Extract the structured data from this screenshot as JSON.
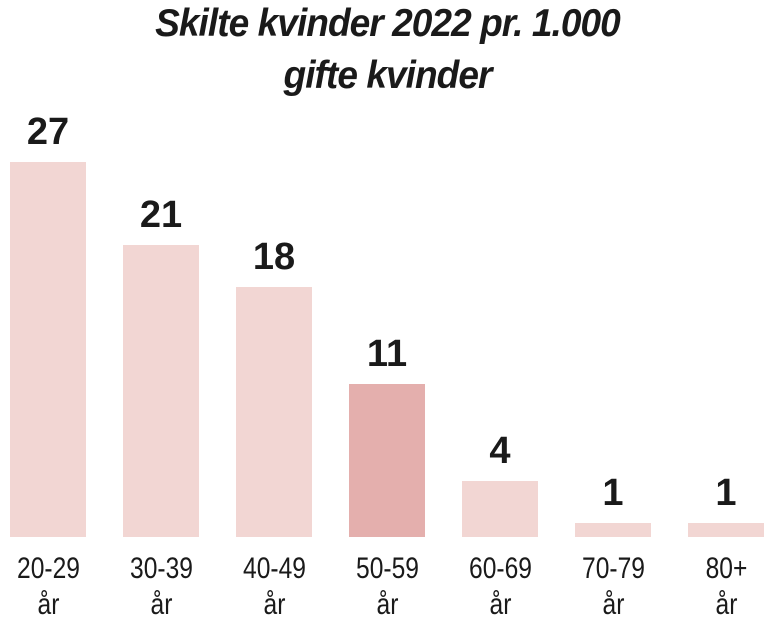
{
  "chart_data": {
    "type": "bar",
    "title": [
      "Skilte kvinder 2022 pr. 1.000",
      "gifte kvinder"
    ],
    "categories": [
      "20-29",
      "30-39",
      "40-49",
      "50-59",
      "60-69",
      "70-79",
      "80+"
    ],
    "category_suffix": "år",
    "values": [
      27,
      21,
      18,
      11,
      4,
      1,
      1
    ],
    "highlight_index": 3,
    "ylim": [
      0,
      27
    ],
    "grid": false,
    "colors": {
      "bar": "#f2d6d3",
      "highlight": "#e4afad",
      "text": "#1a1a1a"
    }
  }
}
